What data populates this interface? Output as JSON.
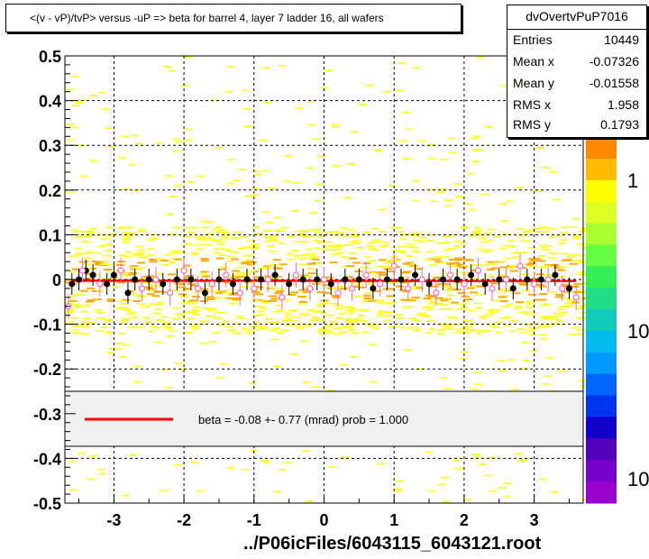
{
  "title": "<(v - vP)/tvP> versus  -uP => beta for barrel 4, layer 7 ladder 16, all wafers",
  "stats": {
    "name": "dvOvertvPuP7016",
    "rows": [
      {
        "label": "Entries",
        "value": "10449"
      },
      {
        "label": "Mean x",
        "value": "-0.07326"
      },
      {
        "label": "Mean y",
        "value": "-0.01558"
      },
      {
        "label": "RMS x",
        "value": "1.958"
      },
      {
        "label": "RMS y",
        "value": "0.1793"
      }
    ]
  },
  "footer": "../P06icFiles/6043115_6043121.root",
  "colors": {
    "fit_line": "#ff0000",
    "profile_black": "#000000",
    "profile_open": "#ff66cc",
    "hist_dense": "#ffaa00",
    "hist_sparse": "#ffff33"
  },
  "chart_data": {
    "type": "heatmap",
    "title": "<(v - vP)/tvP> versus  -uP => beta for barrel 4, layer 7 ladder 16, all wafers",
    "xlim": [
      -3.7,
      3.7
    ],
    "ylim": [
      -0.5,
      0.5
    ],
    "x_ticks": [
      "-3",
      "-2",
      "-1",
      "0",
      "1",
      "2",
      "3"
    ],
    "y_ticks": [
      "-0.5",
      "-0.4",
      "-0.3",
      "-0.2",
      "-0.1",
      "0",
      "0.1",
      "0.2",
      "0.3",
      "0.4",
      "0.5"
    ],
    "grid": true,
    "palette_labels": [
      "1",
      "10",
      "10"
    ],
    "fit": {
      "label": "beta =   -0.08 +-  0.77 (mrad) prob = 1.000",
      "slope": -8e-05,
      "intercept": -0.003
    },
    "profile_filled": {
      "x": [
        -3.6,
        -3.5,
        -3.4,
        -3.3,
        -3.1,
        -3.0,
        -2.8,
        -2.7,
        -2.5,
        -2.3,
        -2.1,
        -1.9,
        -1.7,
        -1.5,
        -1.3,
        -1.1,
        -0.9,
        -0.7,
        -0.5,
        -0.3,
        -0.1,
        0.1,
        0.3,
        0.5,
        0.7,
        0.9,
        1.1,
        1.3,
        1.5,
        1.7,
        1.9,
        2.1,
        2.3,
        2.5,
        2.7,
        2.9,
        3.1,
        3.3,
        3.5
      ],
      "y": [
        -0.01,
        0.0,
        0.02,
        0.01,
        -0.01,
        0.01,
        -0.03,
        0.0,
        0.0,
        -0.01,
        0.0,
        0.0,
        -0.03,
        0.0,
        -0.01,
        0.0,
        0.0,
        0.01,
        -0.01,
        0.0,
        0.0,
        -0.01,
        0.0,
        0.0,
        -0.02,
        0.0,
        0.0,
        0.01,
        -0.01,
        0.0,
        0.0,
        0.01,
        -0.01,
        0.0,
        -0.02,
        0.0,
        0.0,
        0.01,
        -0.02
      ]
    },
    "profile_open": {
      "x": [
        -3.65,
        -3.45,
        -3.2,
        -2.9,
        -2.6,
        -2.4,
        -2.2,
        -2.0,
        -1.8,
        -1.6,
        -1.4,
        -1.2,
        -1.0,
        -0.8,
        -0.6,
        -0.4,
        -0.2,
        0.0,
        0.2,
        0.4,
        0.6,
        0.8,
        1.0,
        1.2,
        1.4,
        1.6,
        1.8,
        2.0,
        2.2,
        2.4,
        2.6,
        2.8,
        3.0,
        3.2,
        3.4,
        3.6
      ],
      "y": [
        -0.06,
        0.02,
        -0.01,
        0.02,
        -0.02,
        0.0,
        -0.03,
        0.02,
        -0.02,
        -0.01,
        0.01,
        -0.03,
        -0.02,
        0.0,
        -0.04,
        0.01,
        -0.02,
        0.0,
        -0.03,
        -0.02,
        0.01,
        -0.01,
        0.03,
        -0.02,
        0.0,
        -0.03,
        0.01,
        -0.01,
        0.02,
        -0.02,
        0.0,
        0.03,
        -0.01,
        0.0,
        -0.02,
        -0.04
      ]
    }
  }
}
